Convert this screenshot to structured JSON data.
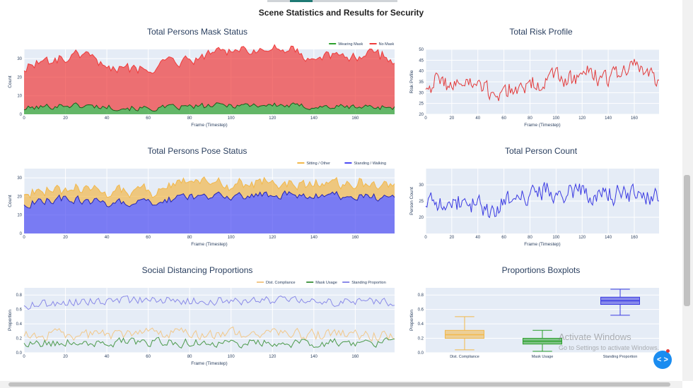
{
  "page_title": "Scene Statistics and Results for Security",
  "colors": {
    "no_mask": "#ef3b3b",
    "wearing_mask": "#2ca02c",
    "sitting": "#f2b84b",
    "standing": "#4b4bf2",
    "risk": "#e23b3b",
    "count": "#3b3be2",
    "dist": "#f2c88a",
    "mask_usage": "#4c9a4c",
    "standing_prop": "#8a8ae8",
    "plot_bg": "#e5ecf6"
  },
  "chart_data": [
    {
      "id": "mask",
      "type": "area",
      "title": "Total Persons Mask Status",
      "xlabel": "Frame (Timestep)",
      "ylabel": "Count",
      "xlim": [
        0,
        179
      ],
      "ylim": [
        0,
        35
      ],
      "xticks": [
        0,
        20,
        40,
        60,
        80,
        100,
        120,
        140,
        160
      ],
      "yticks": [
        0,
        10,
        20,
        30
      ],
      "legend": "top-right",
      "series": [
        {
          "name": "No Mask",
          "color": "#ef3b3b",
          "stacked": true,
          "keypoints": [
            [
              0,
              22
            ],
            [
              10,
              24
            ],
            [
              20,
              25
            ],
            [
              30,
              27
            ],
            [
              40,
              23
            ],
            [
              50,
              22
            ],
            [
              60,
              22
            ],
            [
              70,
              25
            ],
            [
              80,
              26
            ],
            [
              90,
              29
            ],
            [
              100,
              30
            ],
            [
              110,
              29
            ],
            [
              120,
              29
            ],
            [
              130,
              29
            ],
            [
              140,
              25
            ],
            [
              150,
              28
            ],
            [
              160,
              27
            ],
            [
              170,
              29
            ],
            [
              179,
              25
            ]
          ],
          "amp": 2.5
        },
        {
          "name": "Wearing Mask",
          "color": "#2ca02c",
          "stacked": true,
          "keypoints": [
            [
              0,
              3
            ],
            [
              20,
              5
            ],
            [
              40,
              4
            ],
            [
              60,
              3
            ],
            [
              80,
              4
            ],
            [
              100,
              5
            ],
            [
              120,
              5
            ],
            [
              140,
              4
            ],
            [
              160,
              4
            ],
            [
              179,
              4
            ]
          ],
          "amp": 1.8
        }
      ]
    },
    {
      "id": "risk",
      "type": "line",
      "title": "Total Risk Profile",
      "xlabel": "Frame (Timestep)",
      "ylabel": "Risk Profile",
      "xlim": [
        0,
        179
      ],
      "ylim": [
        20,
        50
      ],
      "xticks": [
        0,
        20,
        40,
        60,
        80,
        100,
        120,
        140,
        160
      ],
      "yticks": [
        20,
        25,
        30,
        35,
        40,
        45,
        50
      ],
      "series": [
        {
          "name": "",
          "color": "#e23b3b",
          "keypoints": [
            [
              0,
              33
            ],
            [
              10,
              36
            ],
            [
              20,
              33
            ],
            [
              30,
              35
            ],
            [
              40,
              33
            ],
            [
              50,
              29
            ],
            [
              60,
              31
            ],
            [
              70,
              32
            ],
            [
              80,
              34
            ],
            [
              90,
              35
            ],
            [
              100,
              37
            ],
            [
              110,
              36
            ],
            [
              120,
              39
            ],
            [
              130,
              38
            ],
            [
              140,
              36
            ],
            [
              150,
              40
            ],
            [
              160,
              42
            ],
            [
              170,
              40
            ],
            [
              179,
              35
            ]
          ],
          "amp": 5
        }
      ]
    },
    {
      "id": "pose",
      "type": "area",
      "title": "Total Persons Pose Status",
      "xlabel": "Frame (Timestep)",
      "ylabel": "Count",
      "xlim": [
        0,
        179
      ],
      "ylim": [
        0,
        35
      ],
      "xticks": [
        0,
        20,
        40,
        60,
        80,
        100,
        120,
        140,
        160
      ],
      "yticks": [
        0,
        10,
        20,
        30
      ],
      "legend": "top-right",
      "series": [
        {
          "name": "Standing / Walking",
          "color": "#4b4bf2",
          "stacked": true,
          "keypoints": [
            [
              0,
              16
            ],
            [
              20,
              19
            ],
            [
              40,
              16
            ],
            [
              60,
              17
            ],
            [
              80,
              20
            ],
            [
              100,
              20
            ],
            [
              120,
              21
            ],
            [
              140,
              21
            ],
            [
              160,
              20
            ],
            [
              179,
              19
            ]
          ],
          "amp": 2.5
        },
        {
          "name": "Sitting / Other",
          "color": "#f2b84b",
          "stacked": true,
          "keypoints": [
            [
              0,
              6
            ],
            [
              20,
              5
            ],
            [
              40,
              6
            ],
            [
              60,
              6
            ],
            [
              80,
              8
            ],
            [
              100,
              6
            ],
            [
              120,
              7
            ],
            [
              140,
              6
            ],
            [
              160,
              7
            ],
            [
              179,
              6
            ]
          ],
          "amp": 2.2
        }
      ]
    },
    {
      "id": "count",
      "type": "line",
      "title": "Total Person Count",
      "xlabel": "Frame (Timestep)",
      "ylabel": "Person Count",
      "xlim": [
        0,
        179
      ],
      "ylim": [
        15,
        35
      ],
      "xticks": [
        0,
        20,
        40,
        60,
        80,
        100,
        120,
        140,
        160
      ],
      "yticks": [
        20,
        25,
        30
      ],
      "series": [
        {
          "name": "",
          "color": "#3b3be2",
          "keypoints": [
            [
              0,
              24
            ],
            [
              20,
              25
            ],
            [
              40,
              24
            ],
            [
              50,
              21
            ],
            [
              60,
              24
            ],
            [
              80,
              27
            ],
            [
              90,
              28
            ],
            [
              100,
              28
            ],
            [
              120,
              28
            ],
            [
              140,
              27
            ],
            [
              160,
              27
            ],
            [
              179,
              26
            ]
          ],
          "amp": 3.5
        }
      ]
    },
    {
      "id": "social",
      "type": "line",
      "title": "Social Distancing Proportions",
      "xlabel": "Frame (Timestep)",
      "ylabel": "Proportion",
      "xlim": [
        0,
        179
      ],
      "ylim": [
        0,
        0.9
      ],
      "xticks": [
        0,
        20,
        40,
        60,
        80,
        100,
        120,
        140,
        160
      ],
      "yticks": [
        0,
        0.2,
        0.4,
        0.6,
        0.8
      ],
      "legend": "top-right",
      "series": [
        {
          "name": "Dist. Compliance",
          "color": "#f2c88a",
          "keypoints": [
            [
              0,
              0.24
            ],
            [
              40,
              0.25
            ],
            [
              80,
              0.26
            ],
            [
              120,
              0.27
            ],
            [
              179,
              0.22
            ]
          ],
          "amp": 0.09
        },
        {
          "name": "Mask Usage",
          "color": "#4c9a4c",
          "keypoints": [
            [
              0,
              0.14
            ],
            [
              40,
              0.15
            ],
            [
              80,
              0.14
            ],
            [
              120,
              0.13
            ],
            [
              179,
              0.15
            ]
          ],
          "amp": 0.07
        },
        {
          "name": "Standing Proportion",
          "color": "#8a8ae8",
          "keypoints": [
            [
              0,
              0.66
            ],
            [
              40,
              0.73
            ],
            [
              80,
              0.72
            ],
            [
              120,
              0.72
            ],
            [
              179,
              0.7
            ]
          ],
          "amp": 0.07
        }
      ]
    },
    {
      "id": "box",
      "type": "box",
      "title": "Proportions Boxplots",
      "ylabel": "Proportion",
      "ylim": [
        0,
        0.9
      ],
      "yticks": [
        0,
        0.2,
        0.4,
        0.6,
        0.8
      ],
      "categories": [
        "Dist. Compliance",
        "Mask Usage",
        "Standing Proportion"
      ],
      "boxes": [
        {
          "name": "Dist. Compliance",
          "color": "#f2b84b",
          "min": 0.04,
          "q1": 0.2,
          "median": 0.25,
          "q3": 0.31,
          "max": 0.5
        },
        {
          "name": "Mask Usage",
          "color": "#2ca02c",
          "min": 0.02,
          "q1": 0.12,
          "median": 0.16,
          "q3": 0.2,
          "max": 0.31
        },
        {
          "name": "Standing Proportion",
          "color": "#3b3be2",
          "min": 0.52,
          "q1": 0.67,
          "median": 0.72,
          "q3": 0.77,
          "max": 0.88
        }
      ]
    }
  ],
  "watermark": {
    "line1": "Activate Windows",
    "line2": "Go to Settings to activate Windows."
  },
  "fab_label": "< >"
}
